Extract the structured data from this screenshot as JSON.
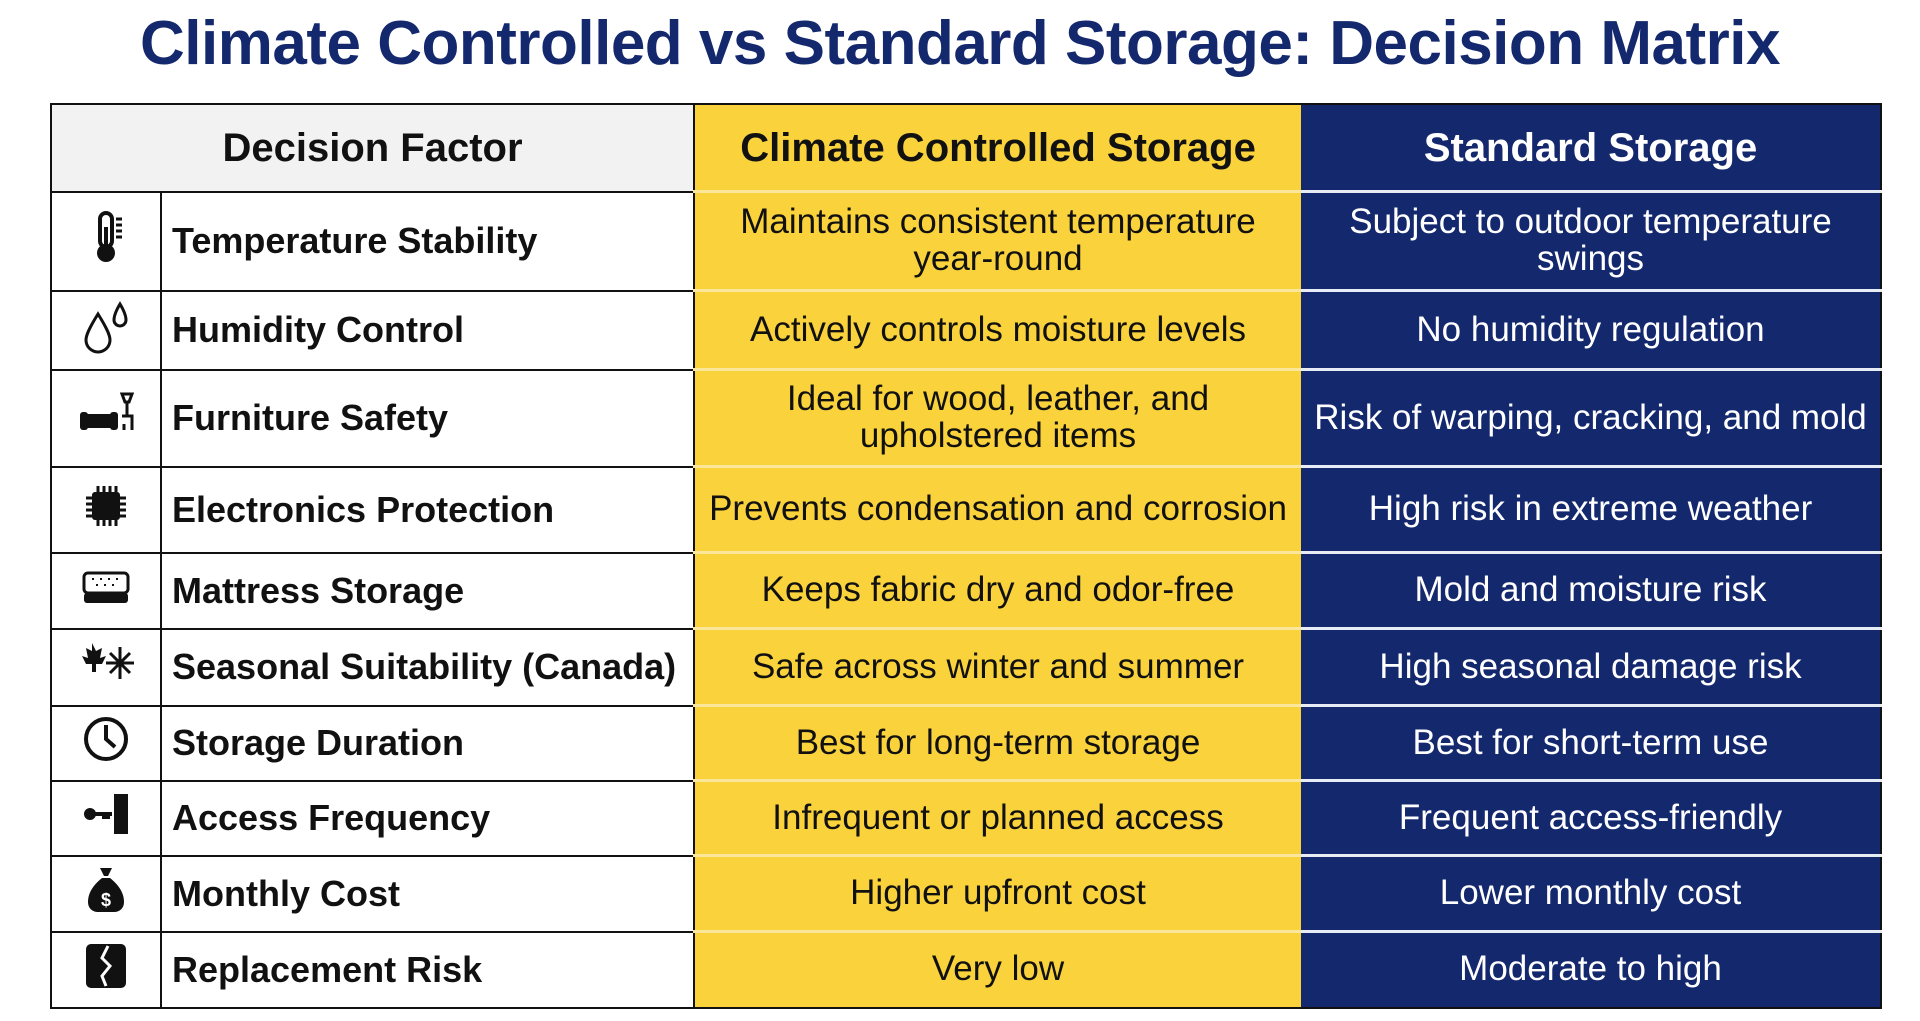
{
  "title": "Climate Controlled vs Standard Storage: Decision Matrix",
  "headers": {
    "factor": "Decision Factor",
    "climate": "Climate Controlled Storage",
    "standard": "Standard Storage"
  },
  "colors": {
    "navy": "#14286e",
    "yellow": "#f9d23c"
  },
  "rows": [
    {
      "icon": "thermometer-icon",
      "factor": "Temperature Stability",
      "climate": "Maintains consistent temperature year-round",
      "standard": "Subject to outdoor temperature swings"
    },
    {
      "icon": "water-drops-icon",
      "factor": "Humidity Control",
      "climate": "Actively controls moisture levels",
      "standard": "No humidity regulation"
    },
    {
      "icon": "furniture-icon",
      "factor": "Furniture Safety",
      "climate": "Ideal for wood, leather, and upholstered items",
      "standard": "Risk of warping, cracking, and mold"
    },
    {
      "icon": "chip-icon",
      "factor": "Electronics Protection",
      "climate": "Prevents condensation and corrosion",
      "standard": "High risk in extreme weather"
    },
    {
      "icon": "mattress-icon",
      "factor": "Mattress Storage",
      "climate": "Keeps fabric dry and odor-free",
      "standard": "Mold and moisture risk"
    },
    {
      "icon": "maple-leaf-snowflake-icon",
      "factor": "Seasonal Suitability (Canada)",
      "climate": "Safe across winter and summer",
      "standard": "High seasonal damage risk"
    },
    {
      "icon": "clock-icon",
      "factor": "Storage Duration",
      "climate": "Best for long-term storage",
      "standard": "Best for short-term use"
    },
    {
      "icon": "key-door-icon",
      "factor": "Access Frequency",
      "climate": "Infrequent or planned access",
      "standard": "Frequent access-friendly"
    },
    {
      "icon": "money-bag-icon",
      "factor": "Monthly Cost",
      "climate": "Higher upfront cost",
      "standard": "Lower monthly cost"
    },
    {
      "icon": "broken-item-icon",
      "factor": "Replacement Risk",
      "climate": "Very low",
      "standard": "Moderate to high"
    }
  ]
}
